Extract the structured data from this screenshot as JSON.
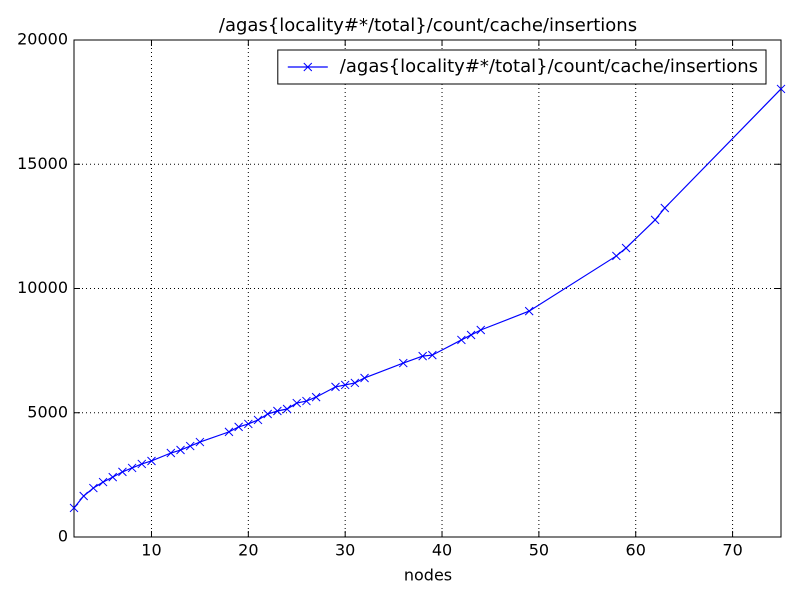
{
  "chart_data": {
    "type": "line",
    "title": "/agas{locality#*/total}/count/cache/insertions",
    "x_label": "nodes",
    "x": [
      2,
      3,
      4,
      5,
      6,
      7,
      8,
      9,
      10,
      12,
      13,
      14,
      15,
      18,
      19,
      20,
      21,
      22,
      23,
      24,
      25,
      26,
      27,
      29,
      30,
      31,
      32,
      36,
      38,
      39,
      42,
      43,
      44,
      49,
      58,
      59,
      62,
      63,
      75
    ],
    "series": [
      {
        "name": "/agas{locality#*/total}/count/cache/insertions",
        "color": "#0000ff",
        "marker": "x",
        "values": [
          1170,
          1650,
          1970,
          2210,
          2410,
          2620,
          2780,
          2940,
          3060,
          3380,
          3500,
          3660,
          3820,
          4230,
          4430,
          4550,
          4710,
          4950,
          5070,
          5150,
          5390,
          5470,
          5630,
          6040,
          6120,
          6200,
          6400,
          7000,
          7280,
          7320,
          7930,
          8130,
          8330,
          9090,
          11310,
          11630,
          12760,
          13240,
          18030
        ]
      }
    ],
    "xlim": [
      2,
      75
    ],
    "ylim": [
      0,
      20000
    ],
    "xticks": [
      10,
      20,
      30,
      40,
      50,
      60,
      70
    ],
    "yticks": [
      0,
      5000,
      10000,
      15000,
      20000
    ],
    "grid": true,
    "legend": "upper-right"
  }
}
